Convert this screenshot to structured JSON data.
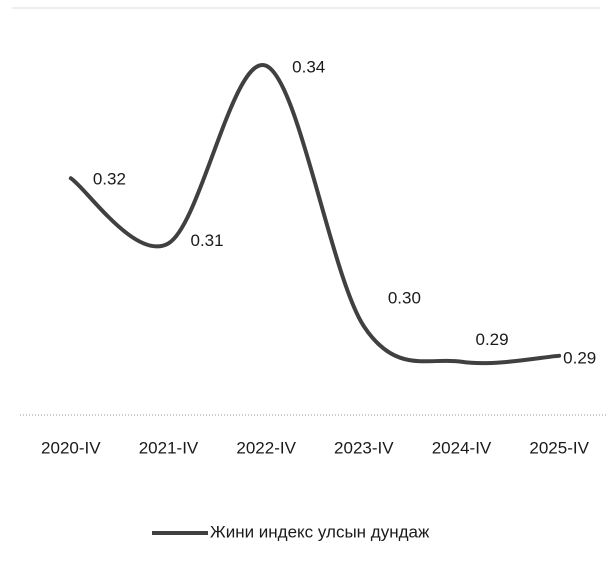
{
  "chart_data": {
    "type": "line",
    "categories": [
      "2020-IV",
      "2021-IV",
      "2022-IV",
      "2023-IV",
      "2024-IV",
      "2025-IV"
    ],
    "series": [
      {
        "name": "Жини индекс улсын дундаж",
        "color": "#404040",
        "values": [
          0.322,
          0.311,
          0.341,
          0.297,
          0.291,
          0.292
        ],
        "value_labels": [
          "0.32",
          "0.31",
          "0.34",
          "0.30",
          "0.29",
          "0.29"
        ]
      }
    ],
    "ylim": [
      0.282,
      0.35
    ],
    "legend": "bottom"
  }
}
